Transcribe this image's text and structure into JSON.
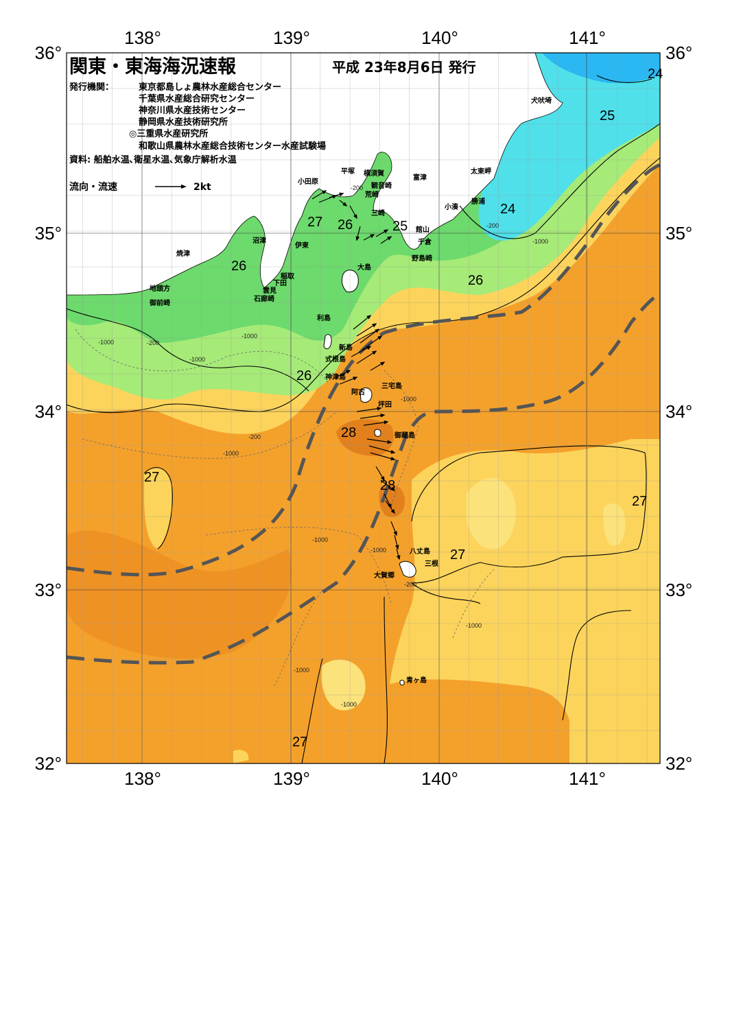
{
  "header": {
    "title": "関東・東海海況速報",
    "date": "平成 23年8月6日 発行",
    "publisher_label": "発行機関：",
    "publishers": [
      "東京都島しょ農林水産総合センター",
      "千葉県水産総合研究センター",
      "神奈川県水産技術センター",
      "静岡県水産技術研究所",
      "◎三重県水産研究所",
      "和歌山県農林水産総合技術センター水産試験場"
    ],
    "source": "資料: 船舶水温､衛星水温､気象庁解析水温"
  },
  "legend": {
    "flow_label": "流向・流速",
    "scale_label": "2kt"
  },
  "axes": {
    "lon_labels": [
      "138°",
      "139°",
      "140°",
      "141°"
    ],
    "lat_labels": [
      "36°",
      "35°",
      "34°",
      "33°",
      "32°"
    ]
  },
  "colors": {
    "ocean_warm": "#f4a12c",
    "ocean_hot": "#e2801e",
    "ocean_mild": "#fcd45c",
    "ocean_light": "#fbe27a",
    "green_light": "#a6ea78",
    "green": "#6cda6c",
    "cyan": "#4fe0ea",
    "blue": "#2bb7f1",
    "land": "#ffffff",
    "kuroshio_axis": "#555555"
  },
  "temperature_labels": [
    {
      "id": "t24a",
      "text": "24"
    },
    {
      "id": "t25a",
      "text": "25"
    },
    {
      "id": "t24b",
      "text": "24"
    },
    {
      "id": "t27a",
      "text": "27"
    },
    {
      "id": "t26a",
      "text": "26"
    },
    {
      "id": "t25b",
      "text": "25"
    },
    {
      "id": "t26b",
      "text": "26"
    },
    {
      "id": "t26c",
      "text": "26"
    },
    {
      "id": "t26d",
      "text": "26"
    },
    {
      "id": "t28a",
      "text": "28"
    },
    {
      "id": "t27b",
      "text": "27"
    },
    {
      "id": "t28b",
      "text": "28"
    },
    {
      "id": "t27c",
      "text": "27"
    },
    {
      "id": "t27d",
      "text": "27"
    },
    {
      "id": "t27e",
      "text": "27"
    }
  ],
  "places": [
    "犬吠埼",
    "小田原",
    "平塚",
    "横須賀",
    "観音崎",
    "富津",
    "太東岬",
    "荒崎",
    "勝浦",
    "小湊",
    "三崎",
    "館山",
    "千倉",
    "沼津",
    "伊東",
    "野島崎",
    "焼津",
    "大島",
    "稲取",
    "下田",
    "雲見",
    "石廊崎",
    "地頭方",
    "御前崎",
    "利島",
    "新島",
    "式根島",
    "神津島",
    "三宅島",
    "阿古",
    "坪田",
    "御蔵島",
    "八丈島",
    "三根",
    "大賀郷",
    "青ヶ島"
  ],
  "depth_labels": [
    "-200",
    "-1000"
  ]
}
